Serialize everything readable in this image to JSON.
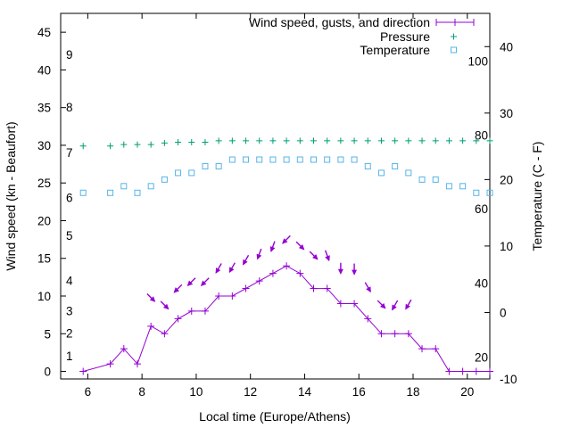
{
  "chart_data": {
    "type": "line",
    "title": "",
    "xlabel": "Local time (Europe/Athens)",
    "ylabel": "Wind speed (kn - Beaufort)",
    "y2label": "Temperature (C - F)",
    "xlim": [
      5,
      20.83
    ],
    "ylim": [
      -1,
      47.5
    ],
    "y2lim": [
      -10,
      45
    ],
    "xticks": [
      6,
      8,
      10,
      12,
      14,
      16,
      18,
      20
    ],
    "yticks": [
      0,
      5,
      10,
      15,
      20,
      25,
      30,
      35,
      40,
      45
    ],
    "y2ticks": [
      -10,
      0,
      10,
      20,
      30,
      40
    ],
    "fahrenheit_labels": [
      {
        "label": "20",
        "temp_c": -6.7
      },
      {
        "label": "40",
        "temp_c": 4.4
      },
      {
        "label": "60",
        "temp_c": 15.6
      },
      {
        "label": "80",
        "temp_c": 26.7
      },
      {
        "label": "100",
        "temp_c": 37.8
      }
    ],
    "beaufort_labels": [
      {
        "label": "1",
        "kn": 1
      },
      {
        "label": "2",
        "kn": 4
      },
      {
        "label": "3",
        "kn": 7
      },
      {
        "label": "4",
        "kn": 11
      },
      {
        "label": "5",
        "kn": 17
      },
      {
        "label": "6",
        "kn": 22
      },
      {
        "label": "7",
        "kn": 28
      },
      {
        "label": "8",
        "kn": 34
      },
      {
        "label": "9",
        "kn": 41
      }
    ],
    "legend": {
      "placement": "top-right",
      "entries": [
        "Wind speed, gusts, and direction",
        "Pressure",
        "Temperature"
      ]
    },
    "series": [
      {
        "name": "Wind speed, gusts, and direction",
        "color": "#9400d3",
        "x": [
          5.83,
          6.83,
          7.33,
          7.83,
          8.33,
          8.83,
          9.33,
          9.83,
          10.33,
          10.83,
          11.33,
          11.83,
          12.33,
          12.83,
          13.33,
          13.83,
          14.33,
          14.83,
          15.33,
          15.83,
          16.33,
          16.83,
          17.33,
          17.83,
          18.33,
          18.83,
          19.33,
          19.83,
          20.33,
          20.83
        ],
        "values": [
          0,
          1,
          3,
          1,
          6,
          5,
          7,
          8,
          8,
          10,
          10,
          11,
          12,
          13,
          14,
          13,
          11,
          11,
          9,
          9,
          7,
          5,
          5,
          5,
          3,
          3,
          0,
          0,
          0,
          0
        ]
      },
      {
        "name": "Gust direction arrows",
        "color": "#9400d3",
        "x": [
          8.33,
          8.83,
          9.33,
          9.83,
          10.33,
          10.83,
          11.33,
          11.83,
          12.33,
          12.83,
          13.33,
          13.83,
          14.33,
          14.83,
          15.33,
          15.83,
          16.33,
          16.83,
          17.33,
          17.83
        ],
        "values": [
          9.8,
          8.8,
          11,
          11.9,
          11.9,
          13.7,
          13.8,
          14.8,
          15.6,
          16.6,
          17.5,
          16.7,
          15.4,
          15.4,
          13.7,
          13.6,
          11.2,
          8.9,
          8.8,
          8.9
        ],
        "direction_deg": [
          135,
          135,
          225,
          225,
          225,
          210,
          210,
          210,
          200,
          200,
          225,
          135,
          135,
          160,
          180,
          180,
          150,
          135,
          210,
          210
        ]
      },
      {
        "name": "Pressure",
        "color": "#009e73",
        "x": [
          5.83,
          6.83,
          7.33,
          7.83,
          8.33,
          8.83,
          9.33,
          9.83,
          10.33,
          10.83,
          11.33,
          11.83,
          12.33,
          12.83,
          13.33,
          13.83,
          14.33,
          14.83,
          15.33,
          15.83,
          16.33,
          16.83,
          17.33,
          17.83,
          18.33,
          18.83,
          19.33,
          19.83,
          20.33,
          20.83
        ],
        "values": [
          29.9,
          29.9,
          30.1,
          30.1,
          30.1,
          30.3,
          30.4,
          30.4,
          30.4,
          30.6,
          30.6,
          30.6,
          30.6,
          30.6,
          30.6,
          30.6,
          30.6,
          30.6,
          30.6,
          30.6,
          30.6,
          30.6,
          30.6,
          30.6,
          30.6,
          30.6,
          30.6,
          30.6,
          30.6,
          30.6
        ]
      },
      {
        "name": "Temperature",
        "color": "#56b4e9",
        "x": [
          5.83,
          6.83,
          7.33,
          7.83,
          8.33,
          8.83,
          9.33,
          9.83,
          10.33,
          10.83,
          11.33,
          11.83,
          12.33,
          12.83,
          13.33,
          13.83,
          14.33,
          14.83,
          15.33,
          15.83,
          16.33,
          16.83,
          17.33,
          17.83,
          18.33,
          18.83,
          19.33,
          19.83,
          20.33,
          20.83
        ],
        "values": [
          18,
          18,
          19,
          18,
          19,
          20,
          21,
          21,
          22,
          22,
          23,
          23,
          23,
          23,
          23,
          23,
          23,
          23,
          23,
          23,
          22,
          21,
          22,
          21,
          20,
          20,
          19,
          19,
          18,
          18
        ]
      }
    ]
  }
}
